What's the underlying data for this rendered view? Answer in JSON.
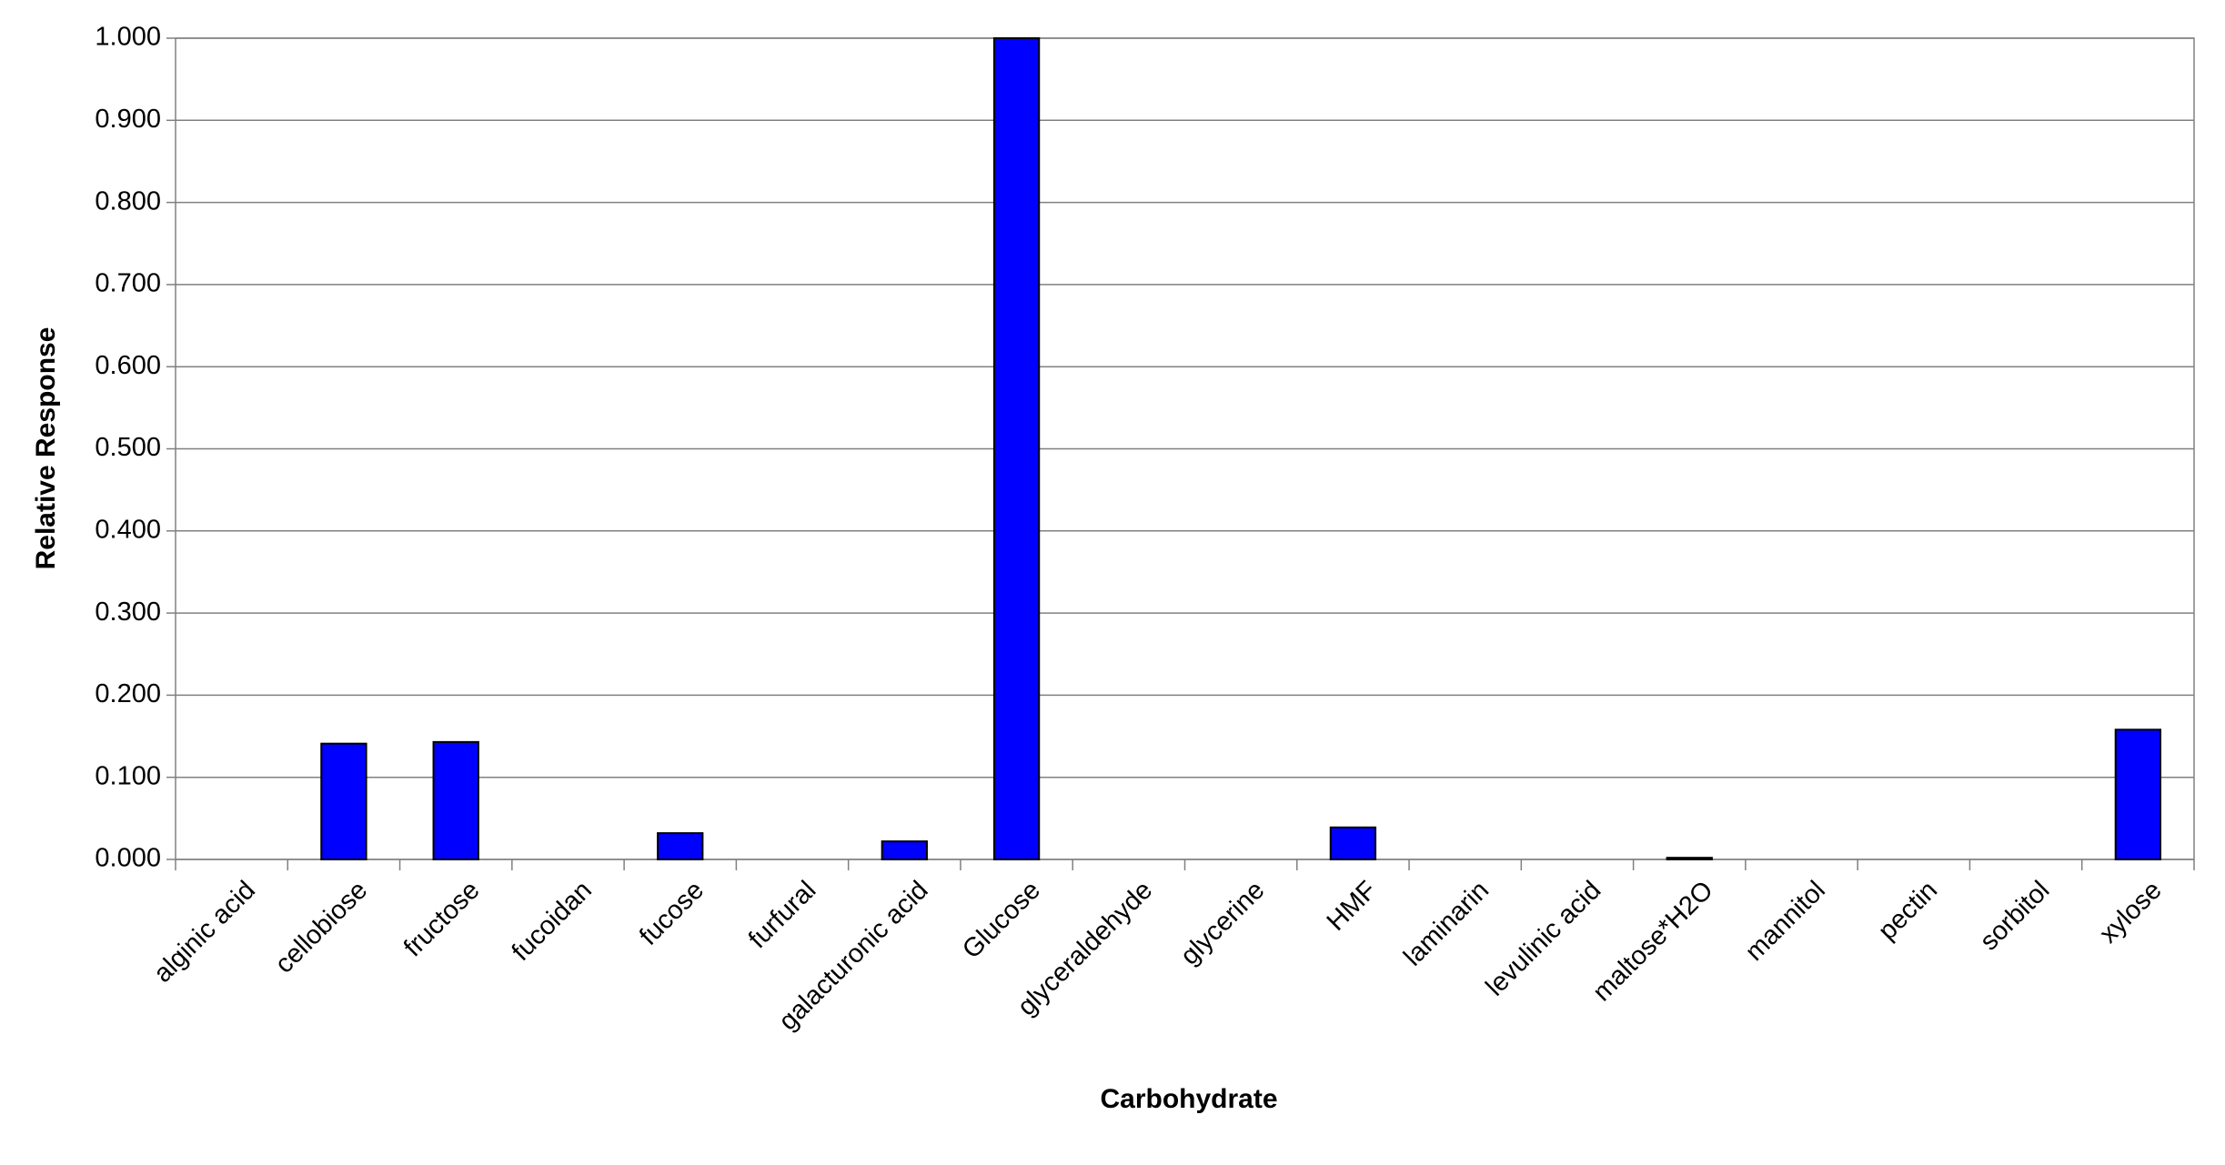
{
  "chart_data": {
    "type": "bar",
    "x_label": "Carbohydrate",
    "y_label": "Relative Response",
    "categories": [
      "alginic acid",
      "cellobiose",
      "fructose",
      "fucoidan",
      "fucose",
      "furfural",
      "galacturonic acid",
      "Glucose",
      "glyceraldehyde",
      "glycerine",
      "HMF",
      "laminarin",
      "levulinic acid",
      "maltose*H2O",
      "mannitol",
      "pectin",
      "sorbitol",
      "xylose"
    ],
    "values": [
      0,
      0.141,
      0.143,
      0,
      0.032,
      0,
      0.022,
      1.0,
      0,
      0,
      0.039,
      0,
      0,
      0.002,
      0,
      0,
      0,
      0.158
    ],
    "color": "#0000ff",
    "ylim": [
      0,
      1.0
    ],
    "yticks": [
      {
        "value": 0,
        "label": "0.000"
      },
      {
        "value": 0.1,
        "label": "0.100"
      },
      {
        "value": 0.2,
        "label": "0.200"
      },
      {
        "value": 0.3,
        "label": "0.300"
      },
      {
        "value": 0.4,
        "label": "0.400"
      },
      {
        "value": 0.5,
        "label": "0.500"
      },
      {
        "value": 0.6,
        "label": "0.600"
      },
      {
        "value": 0.7,
        "label": "0.700"
      },
      {
        "value": 0.8,
        "label": "0.800"
      },
      {
        "value": 0.9,
        "label": "0.900"
      },
      {
        "value": 1.0,
        "label": "1.000"
      }
    ],
    "grid": true
  }
}
